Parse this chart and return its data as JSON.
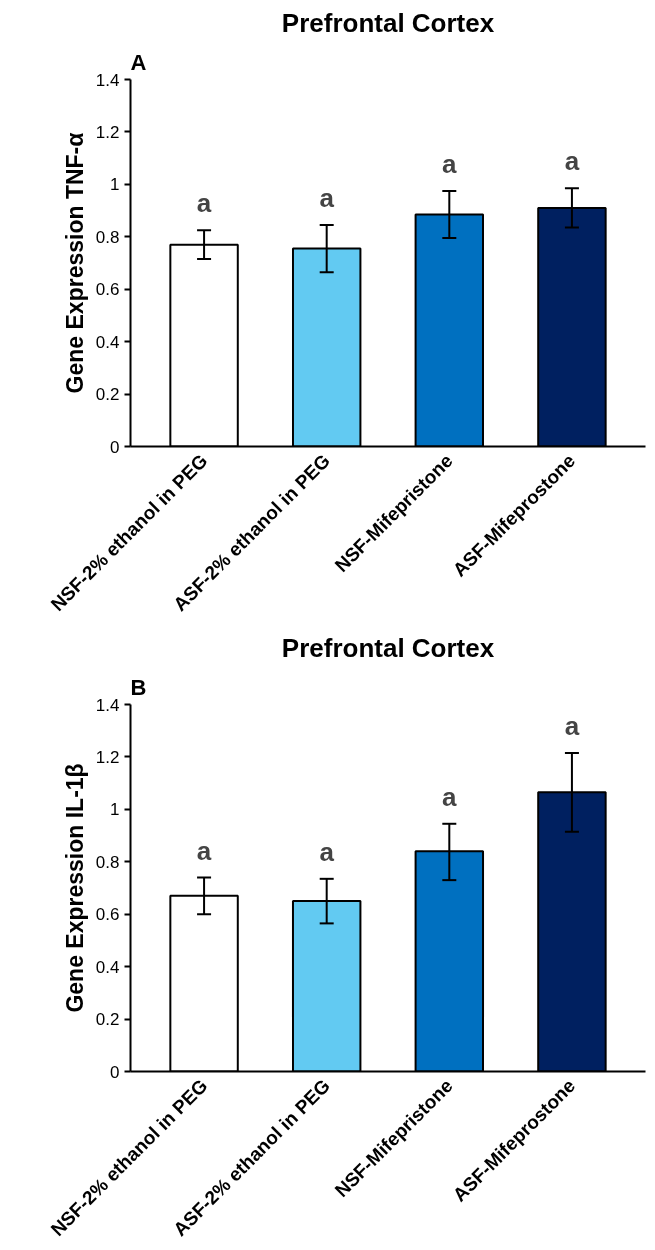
{
  "chart_data": [
    {
      "type": "bar",
      "title": "Prefrontal Cortex",
      "ylabel": "Gene Expression TNF-α",
      "categories": [
        "NSF-2% ethanol in PEG",
        "ASF-2% ethanol in PEG",
        "NSF-Mifepristone",
        "ASF-Mifeprostone"
      ],
      "values": [
        0.77,
        0.755,
        0.885,
        0.91
      ],
      "colors": [
        "#ffffff",
        "#62caf2",
        "#0070c0",
        "#002060"
      ],
      "errors": [
        [
          0.715,
          0.825
        ],
        [
          0.665,
          0.845
        ],
        [
          0.795,
          0.975
        ],
        [
          0.835,
          0.985
        ]
      ],
      "ylim": [
        0,
        1.4
      ],
      "yticks": [
        0,
        0.2,
        0.4,
        0.6,
        0.8,
        {
          "value": 1,
          "label": "1"
        },
        1.2,
        1.4
      ],
      "grid": false,
      "annotations": [
        "A",
        "a",
        "a",
        "a",
        "a"
      ]
    },
    {
      "type": "bar",
      "title": "Prefrontal Cortex",
      "ylabel": "Gene Expression IL-1β",
      "categories": [
        "NSF-2% ethanol in PEG",
        "ASF-2% ethanol in PEG",
        "NSF-Mifepristone",
        "ASF-Mifeprostone"
      ],
      "values": [
        0.67,
        0.65,
        0.84,
        1.065
      ],
      "colors": [
        "#ffffff",
        "#62caf2",
        "#0070c0",
        "#002060"
      ],
      "errors": [
        [
          0.6,
          0.74
        ],
        [
          0.565,
          0.735
        ],
        [
          0.73,
          0.945
        ],
        [
          0.915,
          1.215
        ]
      ],
      "ylim": [
        0,
        1.4
      ],
      "yticks": [
        0,
        0.2,
        0.4,
        0.6,
        0.8,
        {
          "value": 1,
          "label": "1"
        },
        1.2,
        1.4
      ],
      "grid": false,
      "annotations": [
        "B",
        "a",
        "a",
        "a",
        "a"
      ]
    }
  ]
}
